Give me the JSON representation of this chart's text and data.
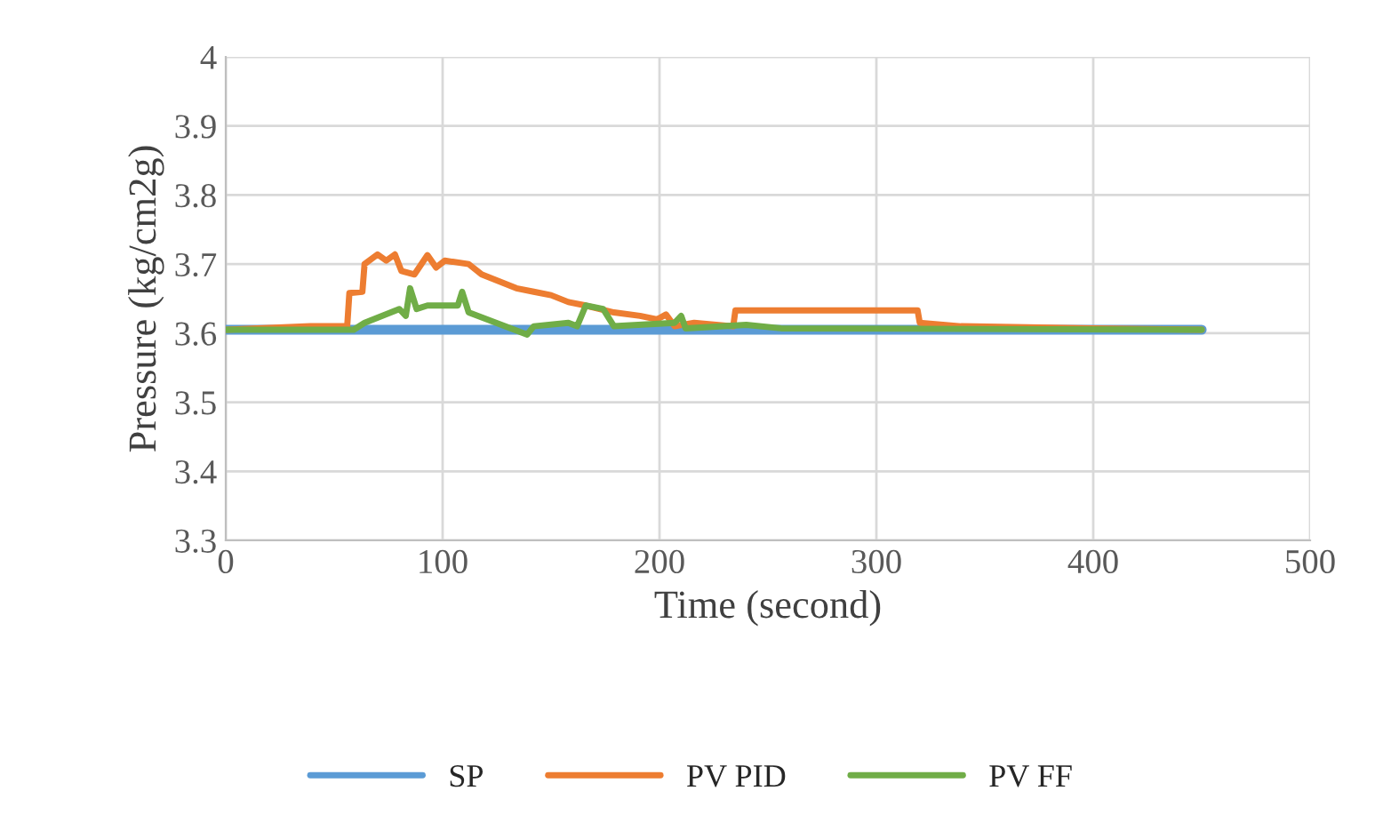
{
  "chart_data": {
    "type": "line",
    "xlabel": "Time (second)",
    "ylabel": "Pressure (kg/cm2g)",
    "xlim": [
      0,
      500
    ],
    "xticks": [
      0,
      100,
      200,
      300,
      400,
      500
    ],
    "ylim": [
      3.3,
      4
    ],
    "yticks": [
      {
        "value": 3.3,
        "label": "3.3"
      },
      {
        "value": 3.4,
        "label": "3.4"
      },
      {
        "value": 3.5,
        "label": "3.5"
      },
      {
        "value": 3.6,
        "label": "3.6"
      },
      {
        "value": 3.7,
        "label": "3.7"
      },
      {
        "value": 3.8,
        "label": "3.8"
      },
      {
        "value": 3.9,
        "label": "3.9"
      },
      {
        "value": 4,
        "label": "4"
      }
    ],
    "grid": true,
    "legend": "bottom",
    "marker": "none",
    "line_style": "solid",
    "series": [
      {
        "name": "SP",
        "color": "#5b9bd5",
        "x": [
          0,
          450
        ],
        "values": [
          3.605,
          3.605
        ]
      },
      {
        "name": "PV PID",
        "color": "#ed7d31",
        "x": [
          0,
          39,
          56,
          57,
          63,
          64,
          70,
          74,
          78,
          81,
          87,
          93,
          97,
          101,
          112,
          118,
          126,
          134,
          142,
          150,
          158,
          166,
          179,
          191,
          199,
          203,
          207,
          216,
          234,
          235,
          319,
          320,
          339,
          400,
          450
        ],
        "values": [
          3.605,
          3.61,
          3.61,
          3.658,
          3.66,
          3.7,
          3.714,
          3.705,
          3.714,
          3.69,
          3.685,
          3.713,
          3.695,
          3.705,
          3.7,
          3.685,
          3.675,
          3.665,
          3.66,
          3.655,
          3.645,
          3.64,
          3.63,
          3.625,
          3.62,
          3.627,
          3.61,
          3.615,
          3.61,
          3.633,
          3.633,
          3.615,
          3.61,
          3.607,
          3.605
        ]
      },
      {
        "name": "PV FF",
        "color": "#70ad47",
        "x": [
          0,
          59,
          64,
          80,
          83,
          85,
          88,
          93,
          107,
          109,
          112,
          139,
          142,
          158,
          162,
          166,
          174,
          179,
          207,
          210,
          212,
          240,
          256,
          450
        ],
        "values": [
          3.605,
          3.605,
          3.615,
          3.635,
          3.625,
          3.665,
          3.635,
          3.64,
          3.64,
          3.66,
          3.63,
          3.598,
          3.61,
          3.615,
          3.61,
          3.64,
          3.635,
          3.61,
          3.615,
          3.625,
          3.607,
          3.612,
          3.607,
          3.605
        ]
      }
    ]
  }
}
